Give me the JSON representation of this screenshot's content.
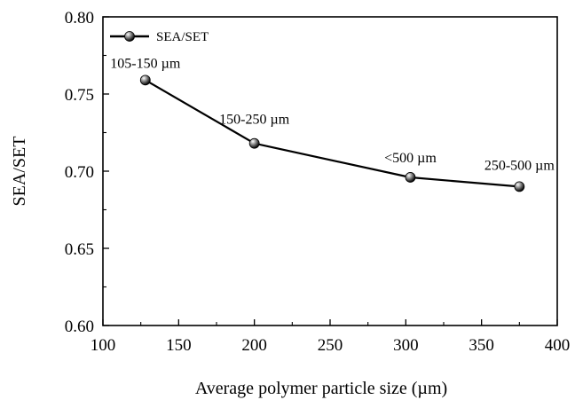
{
  "chart_data": {
    "type": "line",
    "title": "",
    "xlabel": "Average polymer particle size (µm)",
    "ylabel": "SEA/SET",
    "xlim": [
      100,
      400
    ],
    "ylim": [
      0.6,
      0.8
    ],
    "xticks": [
      "100",
      "150",
      "200",
      "250",
      "300",
      "350",
      "400"
    ],
    "yticks": [
      "0.60",
      "0.65",
      "0.70",
      "0.75",
      "0.80"
    ],
    "grid": false,
    "legend_position": "top-left",
    "series": [
      {
        "name": "SEA/SET",
        "color": "#000000",
        "marker": "sphere",
        "x": [
          128,
          200,
          303,
          375
        ],
        "y": [
          0.759,
          0.718,
          0.696,
          0.69
        ],
        "point_labels": [
          "105-150 µm",
          "150-250 µm",
          "<500 µm",
          "250-500 µm"
        ]
      }
    ]
  }
}
